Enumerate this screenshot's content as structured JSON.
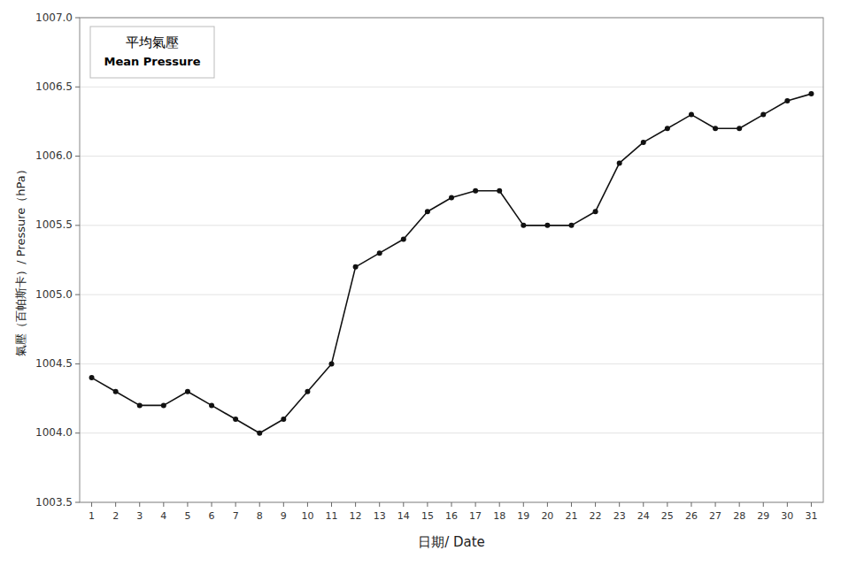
{
  "chart_data": {
    "type": "line",
    "xlabel": "日期/ Date",
    "ylabel": "氣壓（百帕斯卡）/ Pressure（hPa）",
    "x": [
      1,
      2,
      3,
      4,
      5,
      6,
      7,
      8,
      9,
      10,
      11,
      12,
      13,
      14,
      15,
      16,
      17,
      18,
      19,
      20,
      21,
      22,
      23,
      24,
      25,
      26,
      27,
      28,
      29,
      30,
      31
    ],
    "series": [
      {
        "name": "平均氣壓\nMean Pressure",
        "color": "#111111",
        "marker": "circle",
        "values": [
          1004.4,
          1004.3,
          1004.2,
          1004.2,
          1004.3,
          1004.2,
          1004.1,
          1004.0,
          1004.1,
          1004.3,
          1004.5,
          1005.2,
          1005.3,
          1005.4,
          1005.6,
          1005.7,
          1005.75,
          1005.75,
          1005.5,
          1005.5,
          1005.5,
          1005.6,
          1005.95,
          1006.1,
          1006.2,
          1006.3,
          1006.2,
          1006.2,
          1006.3,
          1006.4,
          1006.45
        ]
      }
    ],
    "xlim": [
      0.5,
      31.5
    ],
    "xticks": [
      1,
      2,
      3,
      4,
      5,
      6,
      7,
      8,
      9,
      10,
      11,
      12,
      13,
      14,
      15,
      16,
      17,
      18,
      19,
      20,
      21,
      22,
      23,
      24,
      25,
      26,
      27,
      28,
      29,
      30,
      31
    ],
    "ylim": [
      1003.5,
      1007.0
    ],
    "yticks": [
      1003.5,
      {
        "value": 1004.0,
        "label": "1004.0"
      },
      1004.5,
      {
        "value": 1005.0,
        "label": "1005.0"
      },
      1005.5,
      {
        "value": 1006.0,
        "label": "1006.0"
      },
      1006.5,
      {
        "value": 1007.0,
        "label": "1007.0"
      }
    ],
    "grid": true,
    "legend": "upper left"
  }
}
